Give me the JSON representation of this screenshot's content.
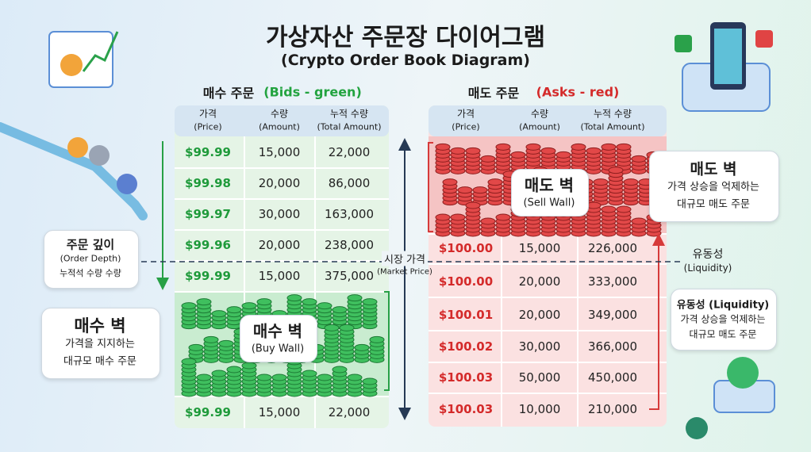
{
  "header": {
    "title": "가상자산 주문장 다이어그램",
    "subtitle": "(Crypto Order Book Diagram)"
  },
  "bids": {
    "heading": "매수 주문",
    "heading_note": "(Bids - green)",
    "columns": [
      {
        "label": "가격",
        "note": "(Price)"
      },
      {
        "label": "수량",
        "note": "(Amount)"
      },
      {
        "label": "누적 수량",
        "note": "(Total Amount)"
      }
    ],
    "rows": [
      [
        "$99.99",
        "15,000",
        "22,000"
      ],
      [
        "$99.98",
        "20,000",
        "86,000"
      ],
      [
        "$99.97",
        "30,000",
        "163,000"
      ],
      [
        "$99.96",
        "20,000",
        "238,000"
      ],
      [
        "$99.99",
        "15,000",
        "375,000"
      ]
    ],
    "wall": {
      "title": "매수 벽",
      "note": "(Buy Wall)"
    },
    "rows_after_wall": [
      [
        "$99.99",
        "15,000",
        "22,000"
      ]
    ]
  },
  "asks": {
    "heading": "매도 주문",
    "heading_note": "(Asks - red)",
    "columns": [
      {
        "label": "가격",
        "note": "(Price)"
      },
      {
        "label": "수량",
        "note": "(Amount)"
      },
      {
        "label": "누적 수량",
        "note": "(Total Amount)"
      }
    ],
    "wall": {
      "title": "매도 벽",
      "note": "(Sell Wall)"
    },
    "rows": [
      [
        "$100.00",
        "15,000",
        "226,000"
      ],
      [
        "$100.00",
        "20,000",
        "333,000"
      ],
      [
        "$100.01",
        "20,000",
        "349,000"
      ],
      [
        "$100.02",
        "30,000",
        "366,000"
      ],
      [
        "$100.03",
        "50,000",
        "450,000"
      ],
      [
        "$100.03",
        "10,000",
        "210,000"
      ]
    ]
  },
  "market_price": {
    "label": "시장 가격",
    "note": "(Market Price)"
  },
  "liquidity": {
    "label": "유동성",
    "note": "(Liquidity)"
  },
  "callouts": {
    "order_depth": {
      "title": "주문 깊이",
      "note": "(Order Depth)",
      "text": "누적석 수량 수량"
    },
    "buy_wall": {
      "title": "매수 벽",
      "line1": "가격을 지지하는",
      "line2": "대규모 매수 주문"
    },
    "sell_wall": {
      "title": "매도 벽",
      "line1": "가격 상승을 억제하는",
      "line2": "대규모 매도 주문"
    },
    "liquidity": {
      "title": "유동성 (Liquidity)",
      "line1": "가격 상승을 억제하는",
      "line2": "대규모 매도 주문"
    }
  }
}
